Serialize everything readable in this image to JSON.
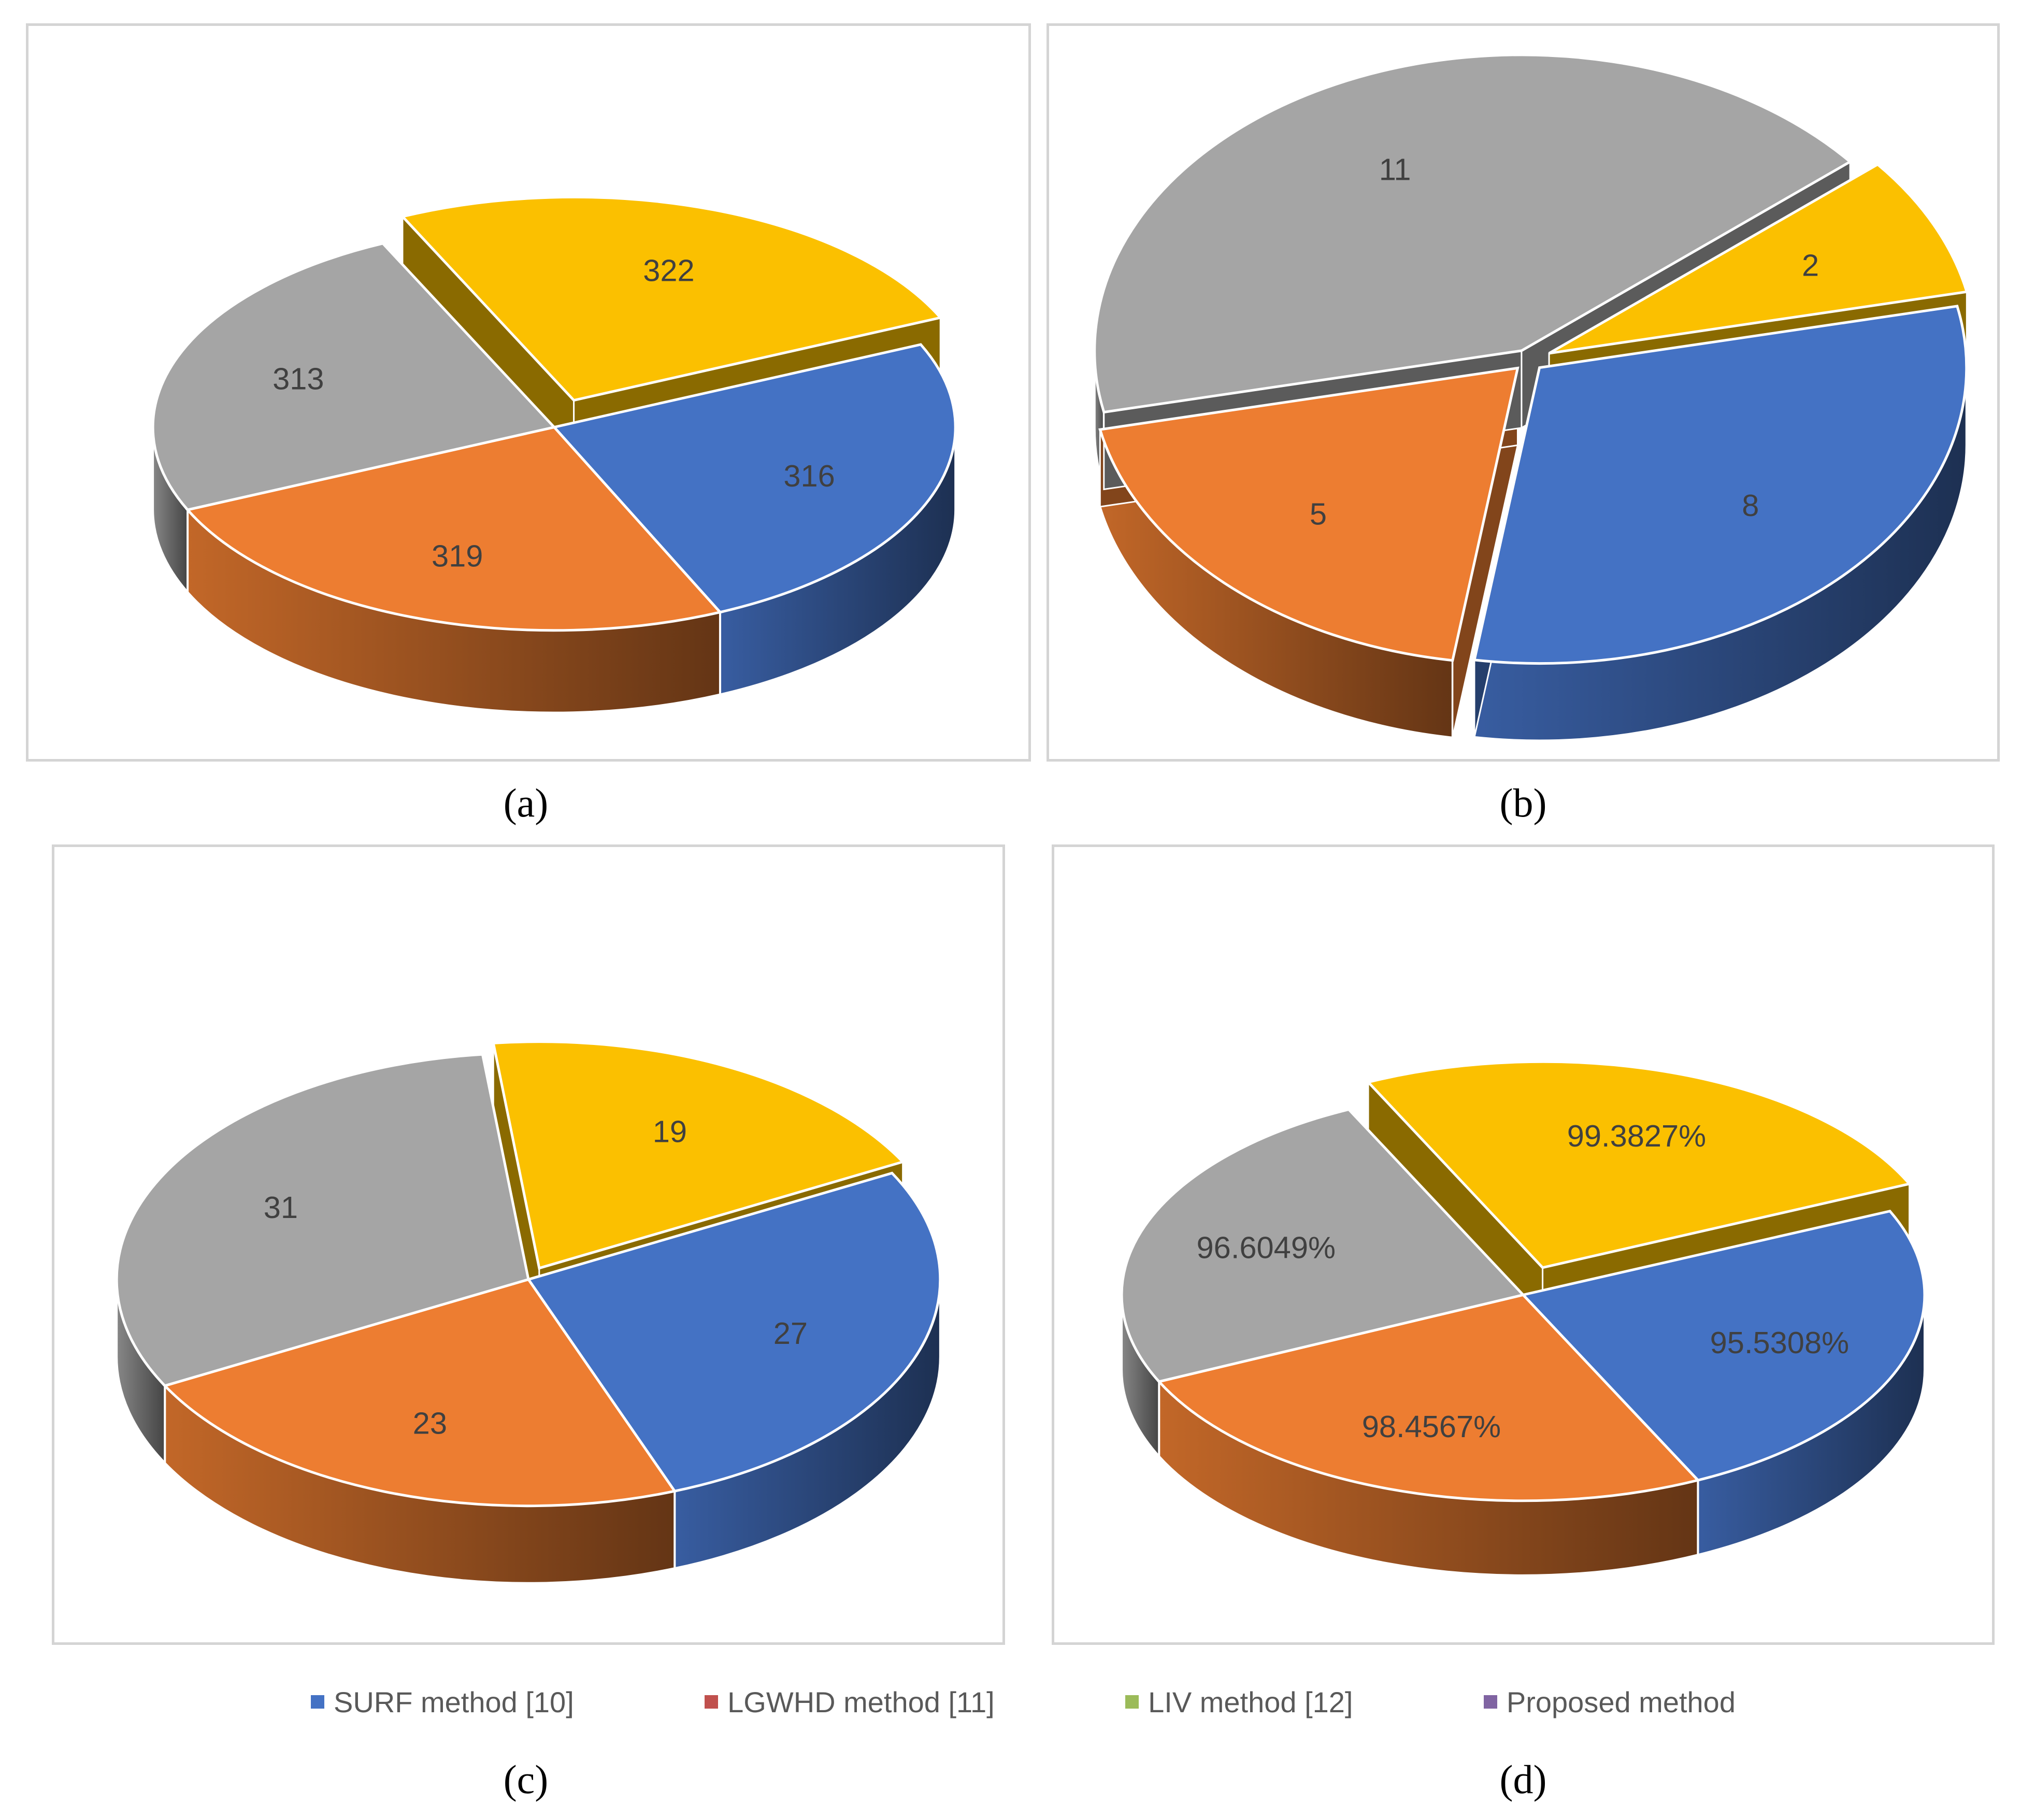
{
  "panels": [
    {
      "id": "a",
      "caption": "(a)"
    },
    {
      "id": "b",
      "caption": "(b)"
    },
    {
      "id": "c",
      "caption": "(c)"
    },
    {
      "id": "d",
      "caption": "(d)"
    }
  ],
  "legend": [
    {
      "label": "SURF method [10]",
      "color": "#4472c4"
    },
    {
      "label": "LGWHD method [11]",
      "color": "#c0504d"
    },
    {
      "label": "LIV method [12]",
      "color": "#9bbb59"
    },
    {
      "label": "Proposed method",
      "color": "#8064a2"
    }
  ],
  "slice_colors": {
    "blue": "#4472c4",
    "orange": "#ed7d31",
    "gray": "#a5a5a5",
    "yellow": "#fbc000"
  },
  "chart_data": [
    {
      "type": "pie",
      "panel": "a",
      "style": "3d",
      "exploded": "yellow slice",
      "slices": [
        {
          "value": 316,
          "label": "316",
          "color": "#4472c4"
        },
        {
          "value": 319,
          "label": "319",
          "color": "#ed7d31"
        },
        {
          "value": 313,
          "label": "313",
          "color": "#a5a5a5"
        },
        {
          "value": 322,
          "label": "322",
          "color": "#fbc000"
        }
      ]
    },
    {
      "type": "pie",
      "panel": "b",
      "style": "3d",
      "exploded": "all slices",
      "slices": [
        {
          "value": 8,
          "label": "8",
          "color": "#4472c4"
        },
        {
          "value": 5,
          "label": "5",
          "color": "#ed7d31"
        },
        {
          "value": 11,
          "label": "11",
          "color": "#a5a5a5"
        },
        {
          "value": 2,
          "label": "2",
          "color": "#fbc000"
        }
      ]
    },
    {
      "type": "pie",
      "panel": "c",
      "style": "3d",
      "exploded": "yellow slice",
      "slices": [
        {
          "value": 27,
          "label": "27",
          "color": "#4472c4"
        },
        {
          "value": 23,
          "label": "23",
          "color": "#ed7d31"
        },
        {
          "value": 31,
          "label": "31",
          "color": "#a5a5a5"
        },
        {
          "value": 19,
          "label": "19",
          "color": "#fbc000"
        }
      ]
    },
    {
      "type": "pie",
      "panel": "d",
      "style": "3d",
      "exploded": "yellow slice",
      "slices": [
        {
          "value": 95.5308,
          "label": "95.5308%",
          "color": "#4472c4"
        },
        {
          "value": 98.4567,
          "label": "98.4567%",
          "color": "#ed7d31"
        },
        {
          "value": 96.6049,
          "label": "96.6049%",
          "color": "#a5a5a5"
        },
        {
          "value": 99.3827,
          "label": "99.3827%",
          "color": "#fbc000"
        }
      ]
    }
  ]
}
